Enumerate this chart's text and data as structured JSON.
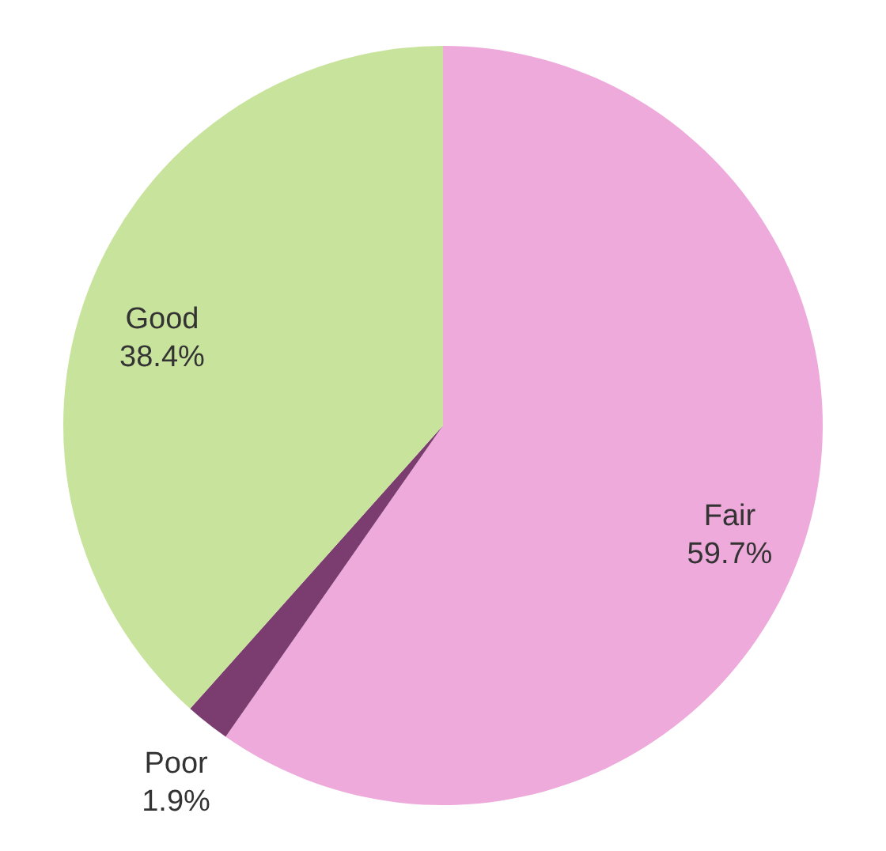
{
  "chart_data": {
    "type": "pie",
    "categories": [
      "Fair",
      "Poor",
      "Good"
    ],
    "values": [
      59.7,
      1.9,
      38.4
    ],
    "colors": [
      "#eeaadb",
      "#7b3d6f",
      "#c8e39c"
    ],
    "value_labels": [
      "59.7%",
      "1.9%",
      "38.4%"
    ]
  }
}
